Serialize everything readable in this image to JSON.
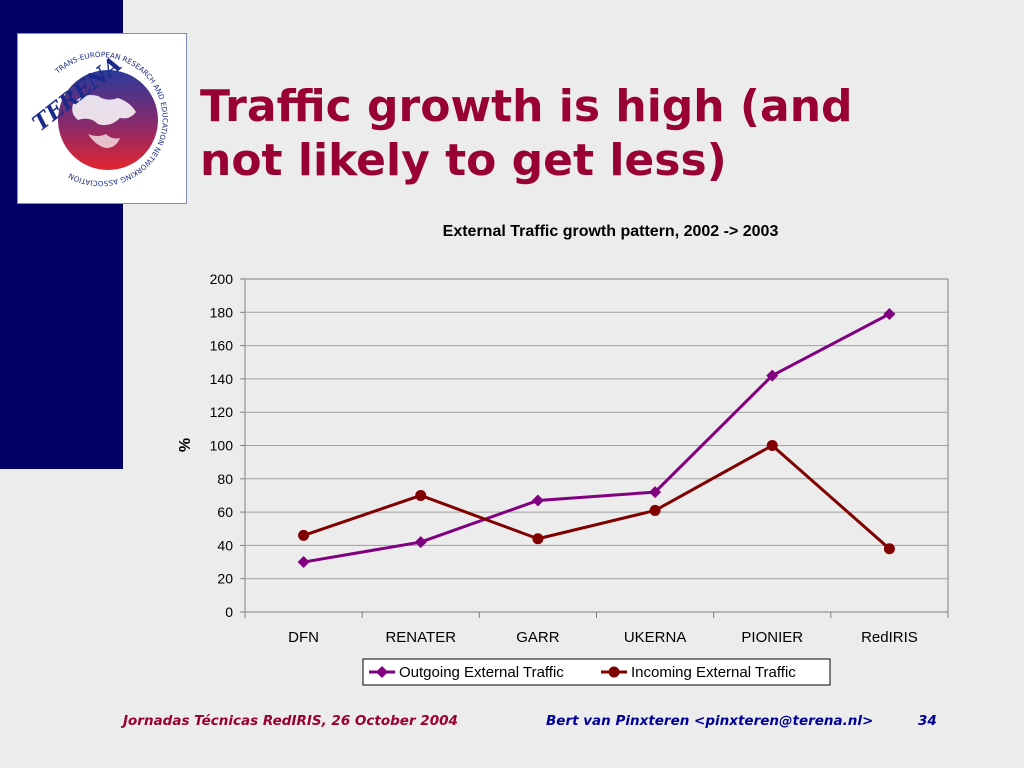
{
  "slide": {
    "title_lines": [
      "Traffic growth is high (and",
      "not likely to get less)"
    ],
    "footer_left": "Jornadas Técnicas RedIRIS, 26 October 2004",
    "footer_right": "Bert van Pinxteren <pinxteren@terena.nl>",
    "page_number": "34"
  },
  "logo": {
    "wordmark": "TERENA",
    "ring_text": "TRANS-EUROPEAN RESEARCH AND EDUCATION NETWORKING ASSOCIATION",
    "colors": {
      "blue": "#1a2a8a",
      "red": "#e3262f"
    }
  },
  "chart_data": {
    "type": "line",
    "title": "External Traffic growth pattern, 2002 -> 2003",
    "xlabel": "",
    "ylabel": "%",
    "categories": [
      "DFN",
      "RENATER",
      "GARR",
      "UKERNA",
      "PIONIER",
      "RedIRIS"
    ],
    "ylim": [
      0,
      200
    ],
    "yticks": [
      0,
      20,
      40,
      60,
      80,
      100,
      120,
      140,
      160,
      180,
      200
    ],
    "grid": true,
    "legend_position": "bottom",
    "series": [
      {
        "name": "Outgoing External Traffic",
        "marker": "diamond",
        "color": "#800080",
        "values": [
          30,
          42,
          67,
          72,
          142,
          179
        ]
      },
      {
        "name": "Incoming External Traffic",
        "marker": "circle",
        "color": "#800000",
        "values": [
          46,
          70,
          44,
          61,
          100,
          38
        ]
      }
    ]
  }
}
